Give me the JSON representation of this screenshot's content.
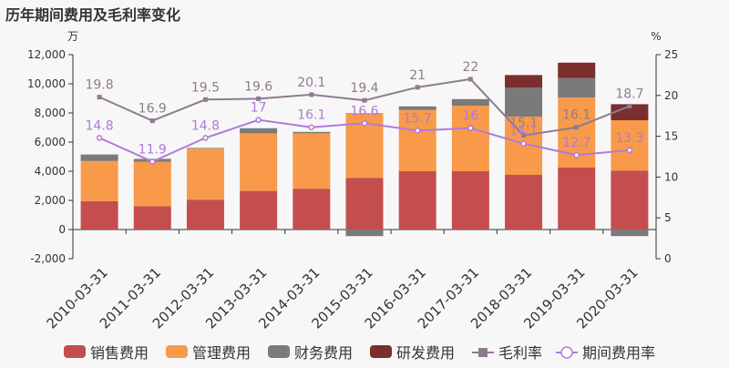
{
  "chart_data": {
    "type": "bar",
    "title": "历年期间费用及毛利率变化",
    "y_left_unit": "万",
    "y_right_unit": "%",
    "categories": [
      "2010-03-31",
      "2011-03-31",
      "2012-03-31",
      "2013-03-31",
      "2014-03-31",
      "2015-03-31",
      "2016-03-31",
      "2017-03-31",
      "2018-03-31",
      "2019-03-31",
      "2020-03-31"
    ],
    "left_axis": {
      "min": -2000,
      "max": 12000,
      "ticks": [
        -2000,
        0,
        2000,
        4000,
        6000,
        8000,
        10000,
        12000
      ],
      "tick_labels": [
        "-2,000",
        "0",
        "2,000",
        "4,000",
        "6,000",
        "8,000",
        "10,000",
        "12,000"
      ]
    },
    "right_axis": {
      "min": 0,
      "max": 25,
      "ticks": [
        0,
        5,
        10,
        15,
        20,
        25
      ],
      "tick_labels": [
        "0",
        "5",
        "10",
        "15",
        "20",
        "25"
      ]
    },
    "bar_series": [
      {
        "name": "销售费用",
        "color": "#c44e4e",
        "values": [
          1950,
          1600,
          2050,
          2650,
          2800,
          3550,
          4000,
          4000,
          3750,
          4250,
          4050
        ]
      },
      {
        "name": "管理费用",
        "color": "#f89a4a",
        "values": [
          2750,
          3050,
          3500,
          3950,
          3800,
          4450,
          4200,
          4500,
          4000,
          4800,
          3450
        ]
      },
      {
        "name": "财务费用",
        "color": "#7a7a7a",
        "values": [
          450,
          200,
          50,
          350,
          100,
          -450,
          250,
          450,
          2000,
          1350,
          -450
        ]
      },
      {
        "name": "研发费用",
        "color": "#7a2e2e",
        "values": [
          0,
          0,
          0,
          0,
          0,
          0,
          0,
          0,
          850,
          1050,
          1100
        ]
      }
    ],
    "line_series": [
      {
        "name": "毛利率",
        "color": "#8f7b8f",
        "marker": "square",
        "values": [
          19.8,
          16.9,
          19.5,
          19.6,
          20.1,
          19.4,
          21,
          22,
          15.1,
          16.1,
          18.7
        ],
        "labels": [
          "19.8",
          "16.9",
          "19.5",
          "19.6",
          "20.1",
          "19.4",
          "21",
          "22",
          "15.1",
          "16.1",
          "18.7"
        ]
      },
      {
        "name": "期间费用率",
        "color": "#b07ad8",
        "marker": "circle",
        "values": [
          14.8,
          11.9,
          14.8,
          17,
          16.1,
          16.6,
          15.7,
          16,
          14.1,
          12.7,
          13.3
        ],
        "labels": [
          "14.8",
          "11.9",
          "14.8",
          "17",
          "16.1",
          "16.6",
          "15.7",
          "16",
          "14.1",
          "12.7",
          "13.3"
        ]
      }
    ],
    "legend": {
      "position": "bottom"
    },
    "grid": false
  }
}
